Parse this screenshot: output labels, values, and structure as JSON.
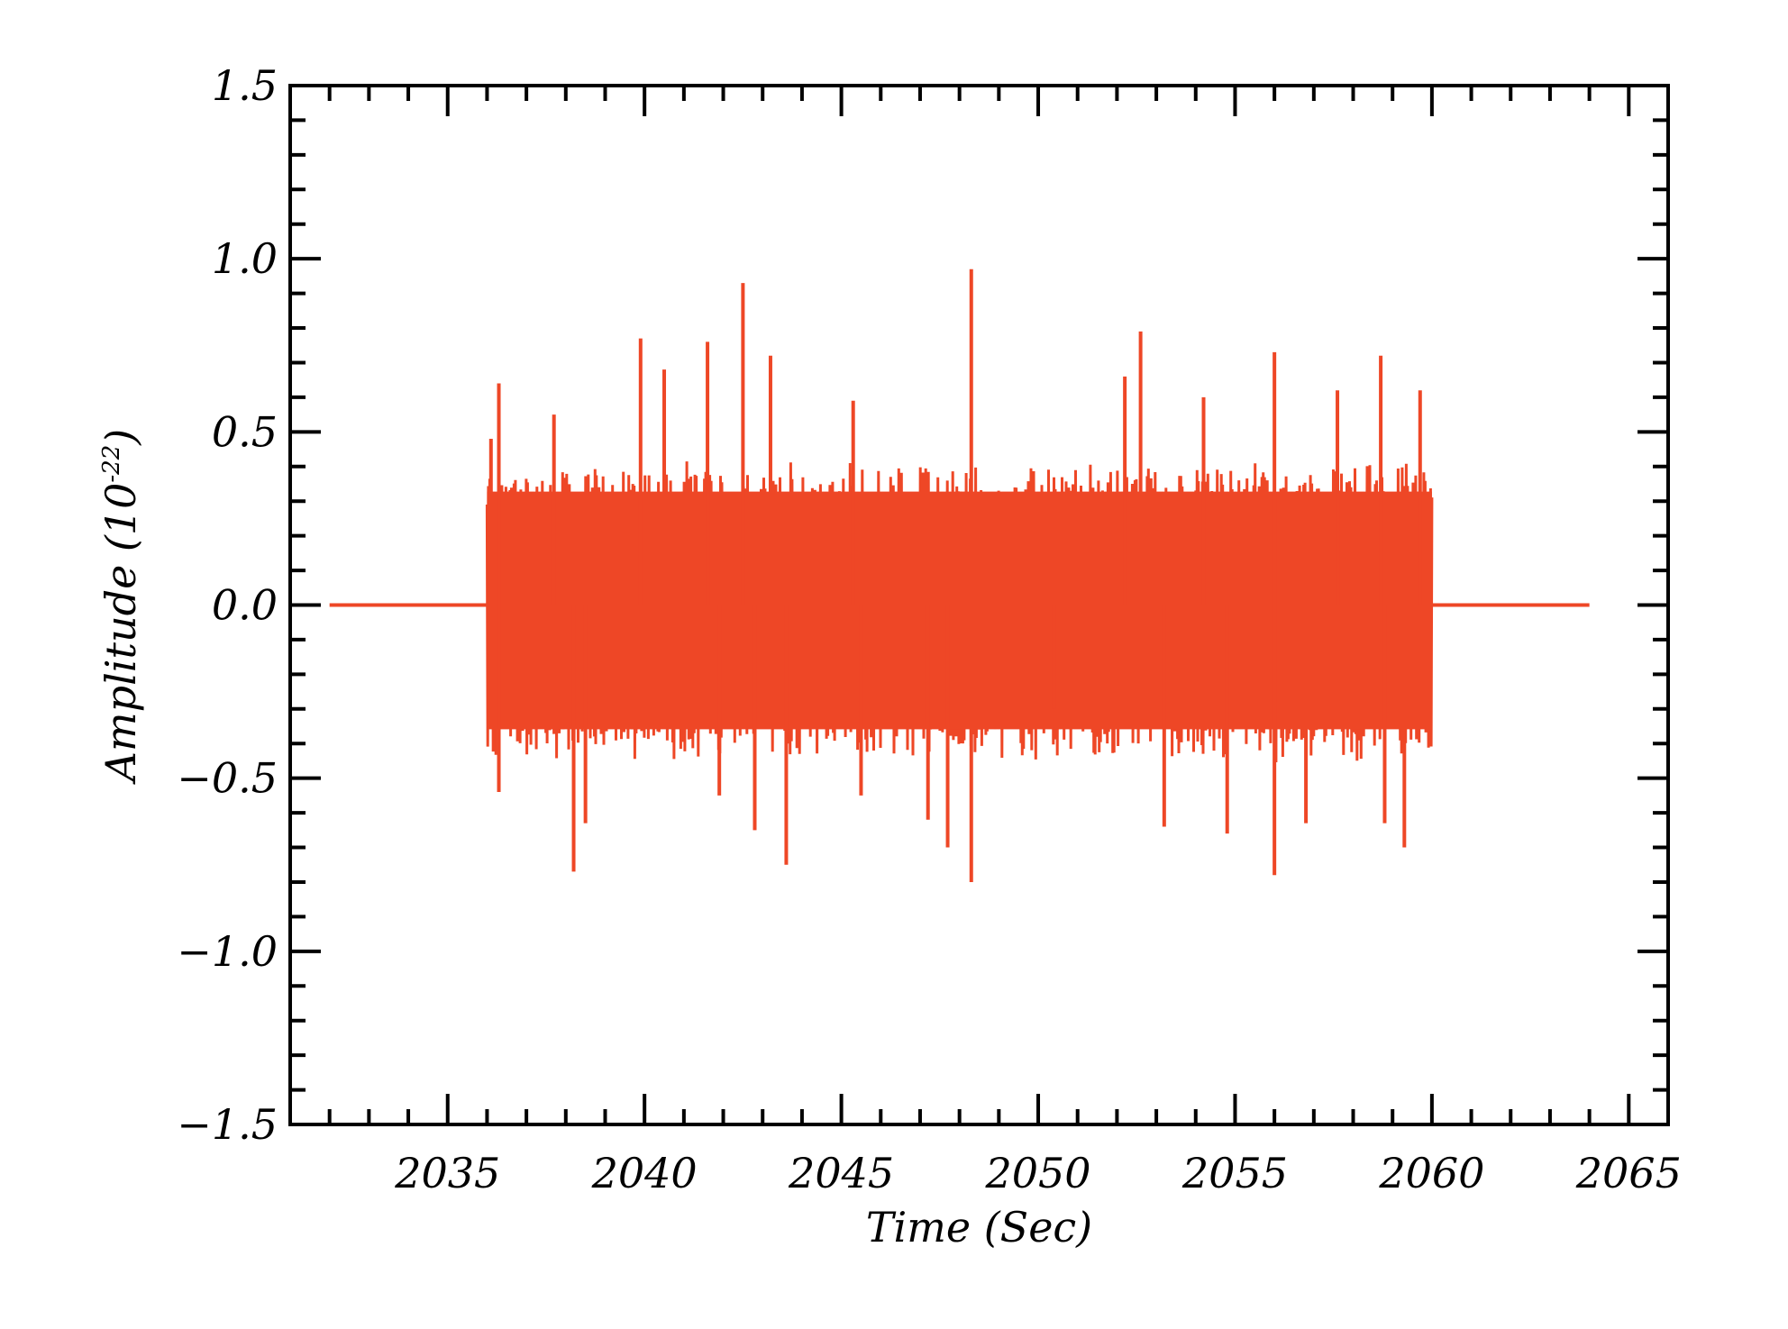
{
  "chart_data": {
    "type": "line",
    "title": "",
    "xlabel": "Time (Sec)",
    "ylabel": {
      "base": "Amplitude (10",
      "exponent": "-22",
      "suffix": ")"
    },
    "xlim": [
      2031,
      2066
    ],
    "ylim": [
      -1.5,
      1.5
    ],
    "xticks": [
      2035,
      2040,
      2045,
      2050,
      2055,
      2060,
      2065
    ],
    "xtick_labels": [
      "2035",
      "2040",
      "2045",
      "2050",
      "2055",
      "2060",
      "2065"
    ],
    "yticks": [
      -1.5,
      -1.0,
      -0.5,
      0.0,
      0.5,
      1.0,
      1.5
    ],
    "ytick_labels": [
      "−1.5",
      "−1.0",
      "−0.5",
      "0.0",
      "0.5",
      "1.0",
      "1.5"
    ],
    "x_minor_step": 1,
    "y_minor_step": 0.1,
    "grid": false,
    "legend": "none",
    "color": "#ee4726",
    "series": [
      {
        "segments": [
          {
            "kind": "flat",
            "x": [
              2032.0,
              2036.0
            ],
            "y": 0.0
          },
          {
            "kind": "noise",
            "x": [
              2036.0,
              2060.0
            ],
            "typical_envelope": {
              "upper": 0.42,
              "lower": -0.46
            },
            "spikes": [
              {
                "x": 2036.1,
                "y": 0.48
              },
              {
                "x": 2036.3,
                "y": 0.64
              },
              {
                "x": 2036.3,
                "y": -0.54
              },
              {
                "x": 2037.7,
                "y": 0.55
              },
              {
                "x": 2038.2,
                "y": -0.77
              },
              {
                "x": 2038.5,
                "y": -0.63
              },
              {
                "x": 2039.9,
                "y": 0.77
              },
              {
                "x": 2040.5,
                "y": 0.68
              },
              {
                "x": 2041.6,
                "y": 0.76
              },
              {
                "x": 2041.9,
                "y": -0.55
              },
              {
                "x": 2042.5,
                "y": 0.93
              },
              {
                "x": 2042.8,
                "y": -0.65
              },
              {
                "x": 2043.2,
                "y": 0.72
              },
              {
                "x": 2043.6,
                "y": -0.75
              },
              {
                "x": 2045.3,
                "y": 0.59
              },
              {
                "x": 2045.5,
                "y": -0.55
              },
              {
                "x": 2047.2,
                "y": -0.62
              },
              {
                "x": 2047.7,
                "y": -0.7
              },
              {
                "x": 2048.3,
                "y": 0.97
              },
              {
                "x": 2048.3,
                "y": -0.8
              },
              {
                "x": 2050.4,
                "y": -0.3
              },
              {
                "x": 2052.2,
                "y": 0.66
              },
              {
                "x": 2052.6,
                "y": 0.79
              },
              {
                "x": 2053.2,
                "y": -0.64
              },
              {
                "x": 2054.2,
                "y": 0.6
              },
              {
                "x": 2054.8,
                "y": -0.66
              },
              {
                "x": 2056.0,
                "y": 0.73
              },
              {
                "x": 2056.0,
                "y": -0.78
              },
              {
                "x": 2056.8,
                "y": -0.63
              },
              {
                "x": 2057.6,
                "y": 0.62
              },
              {
                "x": 2058.7,
                "y": 0.72
              },
              {
                "x": 2058.8,
                "y": -0.63
              },
              {
                "x": 2059.3,
                "y": -0.7
              },
              {
                "x": 2059.7,
                "y": 0.62
              }
            ]
          },
          {
            "kind": "flat",
            "x": [
              2060.0,
              2064.0
            ],
            "y": 0.0
          }
        ]
      }
    ]
  }
}
